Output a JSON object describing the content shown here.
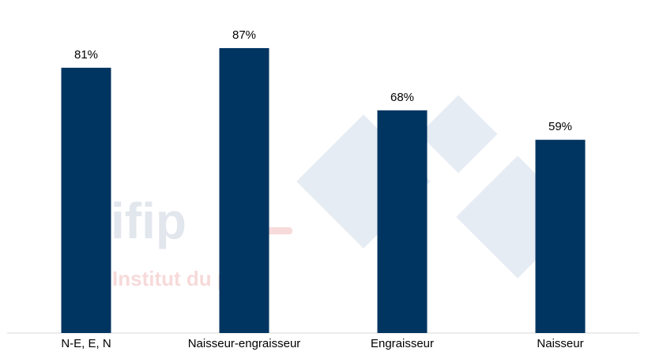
{
  "chart_data": {
    "type": "bar",
    "categories": [
      "N-E, E, N",
      "Naisseur-engraisseur",
      "Engraisseur",
      "Naisseur"
    ],
    "values": [
      81,
      87,
      68,
      59
    ],
    "value_labels": [
      "81%",
      "87%",
      "68%",
      "59%"
    ],
    "color": "#003461",
    "ylim": [
      0,
      100
    ],
    "watermark": [
      "ifip",
      "Institut du porc"
    ]
  }
}
